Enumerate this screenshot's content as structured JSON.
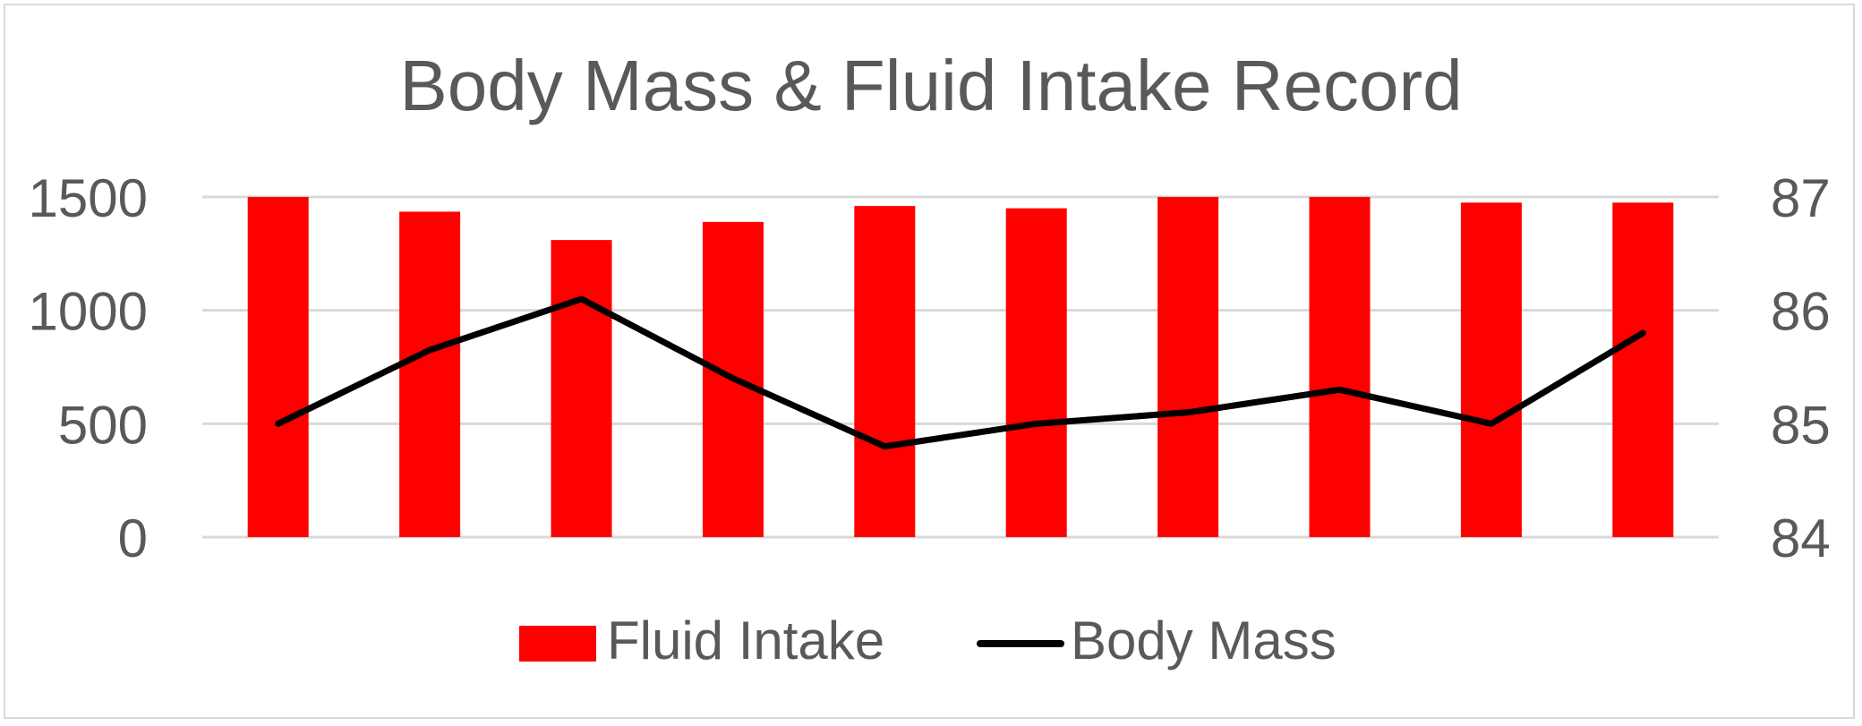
{
  "chart_data": {
    "type": "bar",
    "title": "Body Mass & Fluid Intake Record",
    "categories": [
      "",
      "",
      "",
      "",
      "",
      "",
      "",
      "",
      "",
      ""
    ],
    "series": [
      {
        "name": "Fluid Intake",
        "type": "bar",
        "axis": "left",
        "color": "#ff0000",
        "values": [
          1500,
          1435,
          1310,
          1390,
          1460,
          1450,
          1500,
          1500,
          1475,
          1475
        ]
      },
      {
        "name": "Body Mass",
        "type": "line",
        "axis": "right",
        "color": "#000000",
        "values": [
          85.0,
          85.65,
          86.1,
          85.4,
          84.8,
          85.0,
          85.1,
          85.3,
          85.0,
          85.8
        ]
      }
    ],
    "y_left": {
      "range": [
        0,
        1500
      ],
      "ticks": [
        0,
        500,
        1000,
        1500
      ],
      "tick_labels": [
        "0",
        "500",
        "1000",
        "1500"
      ]
    },
    "y_right": {
      "range": [
        84,
        87
      ],
      "ticks": [
        84,
        85,
        86,
        87
      ],
      "tick_labels": [
        "84",
        "85",
        "86",
        "87"
      ]
    },
    "xlabel": "",
    "ylabel": "",
    "grid": true,
    "grid_color": "#d9d9d9",
    "legend_placement": "bottom",
    "legend": [
      {
        "label": "Fluid Intake",
        "kind": "bar",
        "color": "#ff0000"
      },
      {
        "label": "Body Mass",
        "kind": "line",
        "color": "#000000"
      }
    ]
  }
}
